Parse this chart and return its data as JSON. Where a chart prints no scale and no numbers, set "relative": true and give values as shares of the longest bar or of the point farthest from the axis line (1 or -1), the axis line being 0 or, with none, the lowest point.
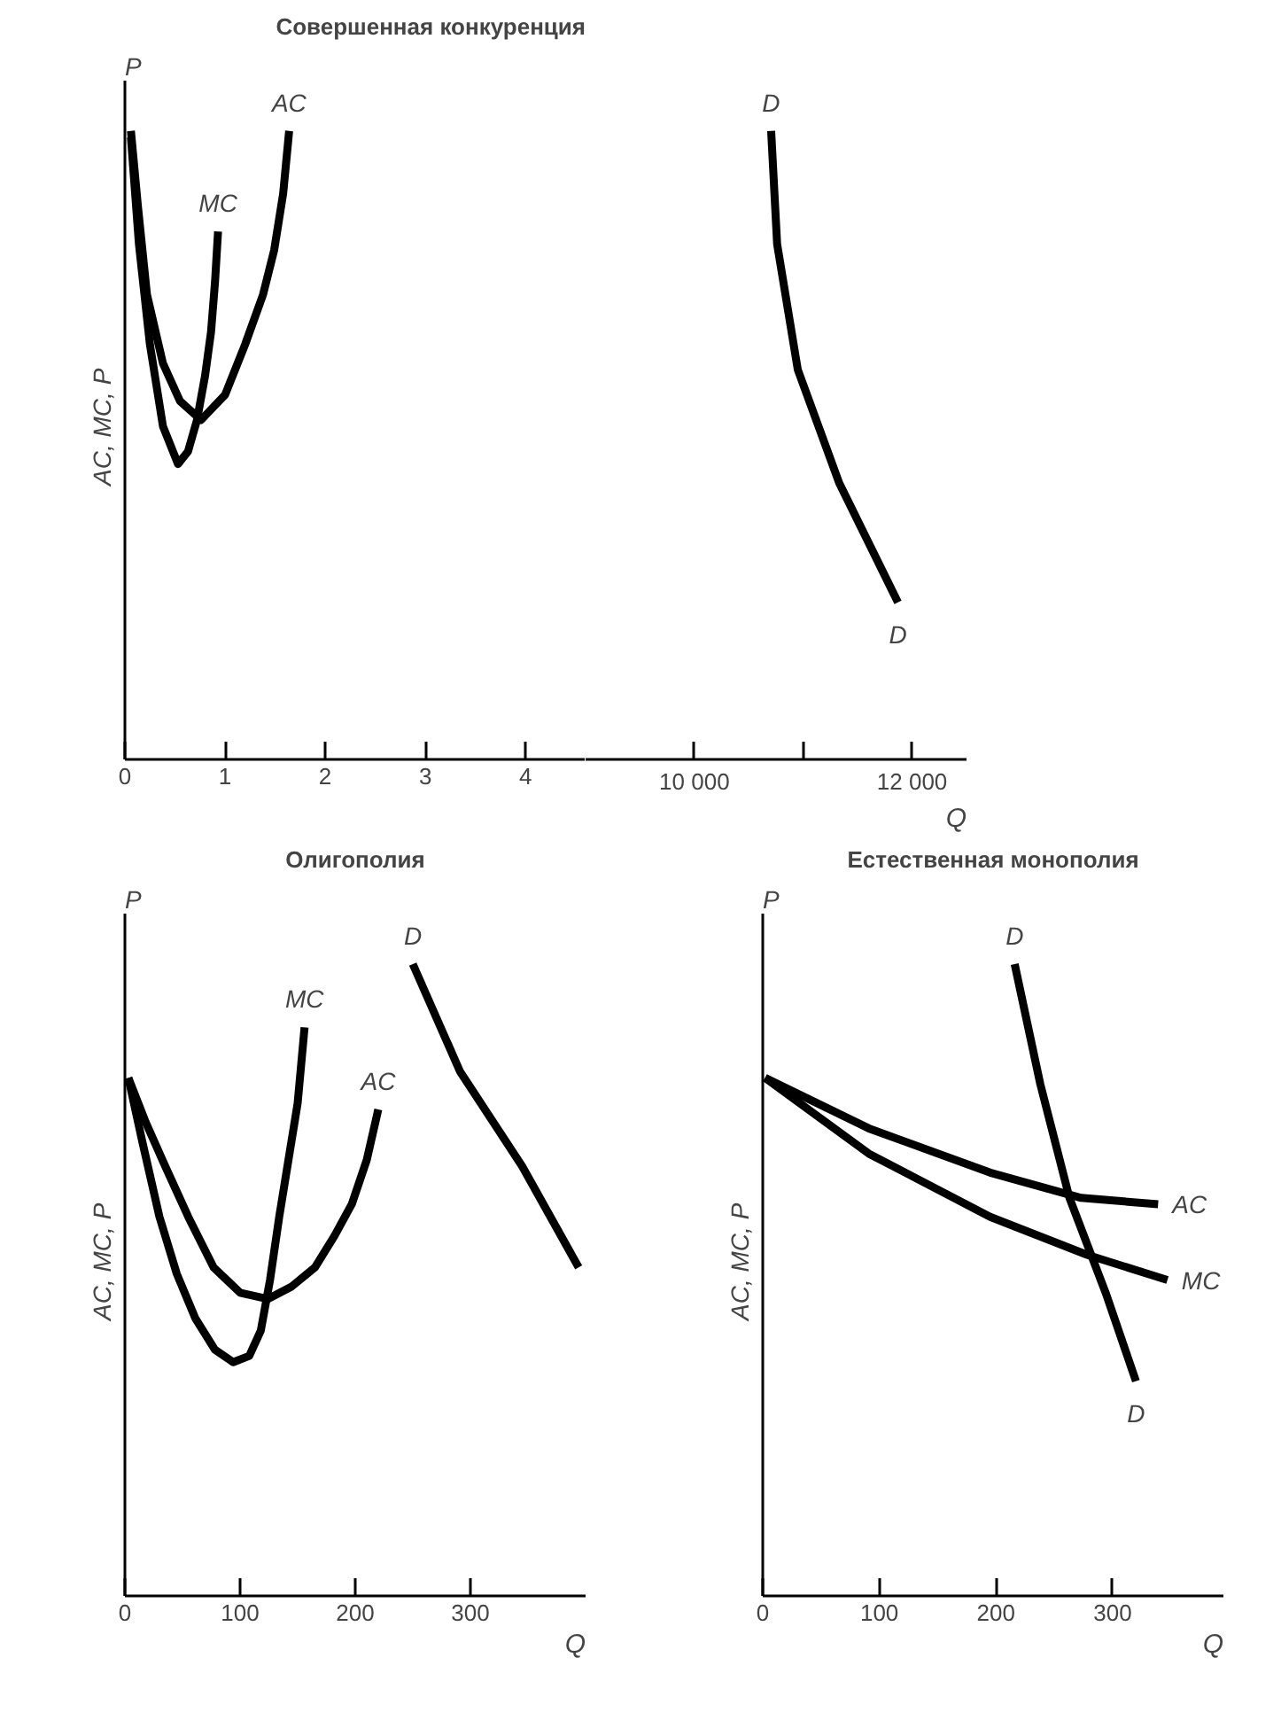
{
  "chart_data": [
    {
      "type": "line",
      "title": "Совершенная конкуренция",
      "ylabel": "AC,  MC,  P",
      "annotations": [
        "P"
      ],
      "relative": true,
      "xlim": [
        0,
        4.6
      ],
      "xticks": [
        0,
        1,
        2,
        3,
        4
      ],
      "tick_labels": "x",
      "line_style": "solid",
      "series": [
        {
          "name": "AC",
          "color": "#000000",
          "x": [
            0.06,
            0.13,
            0.22,
            0.38,
            0.55,
            0.76,
            1.0,
            1.2,
            1.38,
            1.49,
            1.58,
            1.64
          ],
          "values": [
            1,
            0.88,
            0.74,
            0.63,
            0.57,
            0.54,
            0.58,
            0.66,
            0.74,
            0.81,
            0.9,
            1
          ]
        },
        {
          "name": "MC",
          "color": "#000000",
          "x": [
            0.06,
            0.14,
            0.25,
            0.38,
            0.53,
            0.63,
            0.72,
            0.8,
            0.86,
            0.9,
            0.93
          ],
          "values": [
            0.99,
            0.82,
            0.66,
            0.53,
            0.47,
            0.49,
            0.54,
            0.61,
            0.68,
            0.76,
            0.84
          ]
        }
      ]
    },
    {
      "type": "line",
      "xlabel": "Q",
      "annotations": [
        {
          "text": "D",
          "x": 11870,
          "y": 0.25
        }
      ],
      "relative": true,
      "xlim": [
        9000,
        12500
      ],
      "xticks": [
        {
          "value": 10000,
          "label": "10 000"
        },
        {
          "value": 11000,
          "label": null
        },
        {
          "value": 12000,
          "label": "12 000"
        }
      ],
      "tick_labels": "x",
      "line_style": "solid",
      "series": [
        {
          "name": "D",
          "color": "#000000",
          "x": [
            10705,
            10760,
            10950,
            11330,
            11870
          ],
          "values": [
            1,
            0.82,
            0.62,
            0.44,
            0.25
          ]
        }
      ]
    },
    {
      "type": "line",
      "title": "Олигополия",
      "xlabel": "Q",
      "ylabel": "AC,  MC,  P",
      "annotations": [
        "P"
      ],
      "relative": true,
      "xlim": [
        0,
        400
      ],
      "xticks": [
        0,
        100,
        200,
        300
      ],
      "tick_labels": "x",
      "line_style": "solid",
      "series": [
        {
          "name": "MC",
          "color": "#000000",
          "x": [
            3,
            15,
            30,
            45,
            61,
            78,
            94,
            108,
            118,
            126,
            134,
            142,
            150,
            156
          ],
          "values": [
            0.82,
            0.72,
            0.6,
            0.51,
            0.44,
            0.39,
            0.37,
            0.38,
            0.42,
            0.5,
            0.6,
            0.69,
            0.78,
            0.9
          ]
        },
        {
          "name": "AC",
          "color": "#000000",
          "x": [
            3,
            18,
            35,
            55,
            77,
            100,
            124,
            145,
            165,
            182,
            197,
            210,
            220
          ],
          "values": [
            0.82,
            0.75,
            0.68,
            0.6,
            0.52,
            0.48,
            0.47,
            0.49,
            0.52,
            0.57,
            0.62,
            0.69,
            0.77
          ]
        },
        {
          "name": "D",
          "color": "#000000",
          "x": [
            250,
            291,
            345,
            394
          ],
          "values": [
            1,
            0.83,
            0.68,
            0.52
          ]
        }
      ]
    },
    {
      "type": "line",
      "title": "Естественная монополия",
      "xlabel": "Q",
      "ylabel": "AC,  MC,  P",
      "annotations": [
        "P",
        {
          "text": "D",
          "x": 320,
          "y": 0.34
        }
      ],
      "relative": true,
      "xlim": [
        0,
        395
      ],
      "xticks": [
        0,
        100,
        200,
        300
      ],
      "tick_labels": "x",
      "line_style": "solid",
      "series": [
        {
          "name": "AC",
          "color": "#000000",
          "x": [
            2,
            91,
            195,
            273,
            339
          ],
          "values": [
            0.82,
            0.74,
            0.67,
            0.63,
            0.62
          ]
        },
        {
          "name": "MC",
          "color": "#000000",
          "x": [
            2,
            91,
            195,
            278,
            347
          ],
          "values": [
            0.82,
            0.7,
            0.6,
            0.54,
            0.5
          ]
        },
        {
          "name": "D",
          "color": "#000000",
          "x": [
            216,
            238,
            263,
            294,
            320
          ],
          "values": [
            1,
            0.81,
            0.63,
            0.48,
            0.34
          ]
        }
      ]
    }
  ]
}
